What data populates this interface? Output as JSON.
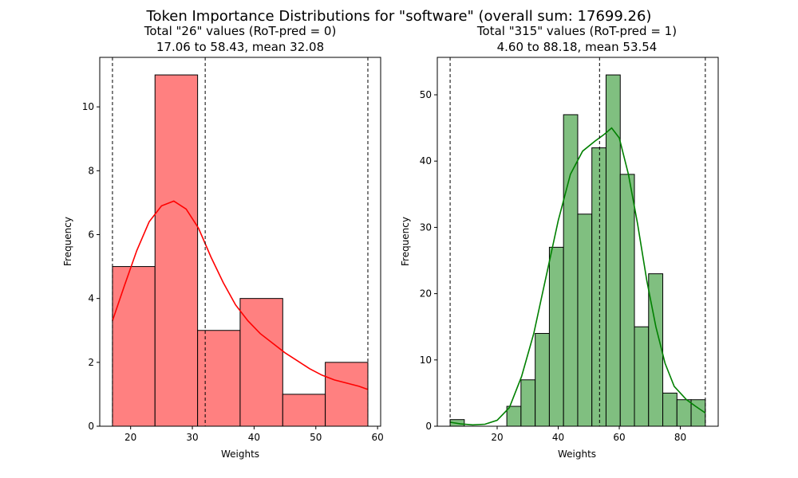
{
  "suptitle": "Token Importance Distributions for \"software\" (overall  sum: 17699.26)",
  "chart_data": [
    {
      "type": "histogram",
      "title_line1": "Total \"26\" values (RoT-pred = 0)",
      "title_line2": "17.06 to 58.43, mean 32.08",
      "xlabel": "Weights",
      "ylabel": "Frequency",
      "xlim": [
        15.0,
        60.5
      ],
      "ylim": [
        0,
        11.55
      ],
      "xticks": [
        20,
        30,
        40,
        50,
        60
      ],
      "yticks": [
        0,
        2,
        4,
        6,
        8,
        10
      ],
      "bar_color": "#ff8080",
      "kde_color": "#ff0000",
      "bins": [
        17.06,
        23.95,
        30.85,
        37.74,
        44.64,
        51.53,
        58.43
      ],
      "counts": [
        5,
        11,
        3,
        4,
        1,
        2
      ],
      "kde": [
        [
          17.06,
          3.3
        ],
        [
          19,
          4.4
        ],
        [
          21,
          5.5
        ],
        [
          23,
          6.4
        ],
        [
          25,
          6.9
        ],
        [
          27,
          7.05
        ],
        [
          29,
          6.8
        ],
        [
          31,
          6.2
        ],
        [
          33,
          5.3
        ],
        [
          35,
          4.5
        ],
        [
          37,
          3.8
        ],
        [
          39,
          3.3
        ],
        [
          41,
          2.9
        ],
        [
          43,
          2.6
        ],
        [
          45,
          2.3
        ],
        [
          47,
          2.05
        ],
        [
          49,
          1.8
        ],
        [
          51,
          1.6
        ],
        [
          53,
          1.45
        ],
        [
          55,
          1.35
        ],
        [
          57,
          1.25
        ],
        [
          58.43,
          1.15
        ]
      ],
      "vlines": [
        17.06,
        32.08,
        58.43
      ]
    },
    {
      "type": "histogram",
      "title_line1": "Total \"315\" values (RoT-pred = 1)",
      "title_line2": "4.60 to 88.18, mean 53.54",
      "xlabel": "Weights",
      "ylabel": "Frequency",
      "xlim": [
        0.4,
        92.4
      ],
      "ylim": [
        0,
        55.65
      ],
      "xticks": [
        20,
        40,
        60,
        80
      ],
      "yticks": [
        0,
        10,
        20,
        30,
        40,
        50
      ],
      "bar_color": "#80bf80",
      "kde_color": "#008000",
      "bins": [
        4.6,
        9.24,
        13.88,
        18.53,
        23.17,
        27.81,
        32.46,
        37.1,
        41.74,
        46.39,
        51.03,
        55.67,
        60.32,
        64.96,
        69.6,
        74.25,
        78.89,
        83.53,
        88.18
      ],
      "counts": [
        1,
        0,
        0,
        0,
        3,
        7,
        14,
        27,
        47,
        32,
        42,
        53,
        38,
        15,
        23,
        5,
        4,
        4
      ],
      "kde": [
        [
          4.6,
          0.6
        ],
        [
          8,
          0.35
        ],
        [
          12,
          0.2
        ],
        [
          16,
          0.3
        ],
        [
          20,
          0.9
        ],
        [
          24,
          2.8
        ],
        [
          28,
          7.5
        ],
        [
          32,
          14
        ],
        [
          36,
          22.5
        ],
        [
          40,
          31
        ],
        [
          44,
          38
        ],
        [
          48,
          41.5
        ],
        [
          52,
          43
        ],
        [
          55,
          44
        ],
        [
          57.5,
          45
        ],
        [
          60,
          43.5
        ],
        [
          63,
          38
        ],
        [
          66,
          30.5
        ],
        [
          69,
          22
        ],
        [
          72,
          15
        ],
        [
          75,
          9.5
        ],
        [
          78,
          6
        ],
        [
          82,
          4
        ],
        [
          85,
          3
        ],
        [
          88.18,
          2
        ]
      ],
      "vlines": [
        4.6,
        53.54,
        88.18
      ]
    }
  ]
}
